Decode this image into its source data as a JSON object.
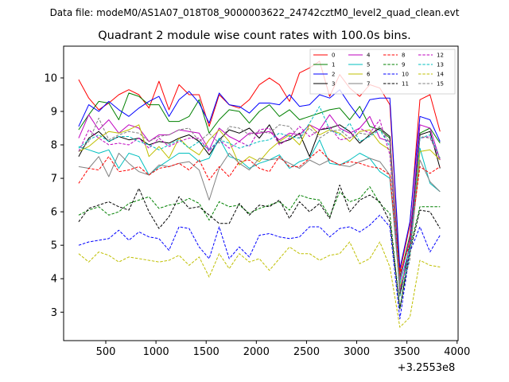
{
  "header": {
    "supertitle": "Data file: modeM0/AS1A07_018T08_9000003622_24742cztM0_level2_quad_clean.evt"
  },
  "chart_data": {
    "type": "line",
    "title": "Quadrant 2 module wise count rates with 100.0s bins.",
    "xlabel": "",
    "ylabel": "",
    "x_offset_label": "+3.2553e8",
    "xlim": [
      80,
      4010
    ],
    "ylim": [
      2.15,
      10.95
    ],
    "xticks": [
      500,
      1000,
      1500,
      2000,
      2500,
      3000,
      3500,
      4000
    ],
    "yticks": [
      3,
      4,
      5,
      6,
      7,
      8,
      9,
      10
    ],
    "legend_location": "top-right",
    "legend_columns": 4,
    "x": [
      230,
      330,
      430,
      530,
      630,
      730,
      830,
      930,
      1030,
      1130,
      1230,
      1330,
      1430,
      1530,
      1630,
      1730,
      1830,
      1930,
      2030,
      2130,
      2230,
      2330,
      2430,
      2530,
      2630,
      2730,
      2830,
      2930,
      3030,
      3130,
      3230,
      3330,
      3430,
      3530,
      3630,
      3730,
      3830
    ],
    "series": [
      {
        "name": "0",
        "color": "#ff0000",
        "dash": "solid",
        "values": [
          9.95,
          9.4,
          9.05,
          9.25,
          9.5,
          9.65,
          9.5,
          9.1,
          9.9,
          9.05,
          9.8,
          9.5,
          9.5,
          8.55,
          9.5,
          9.2,
          9.1,
          9.35,
          9.8,
          10.0,
          9.8,
          9.3,
          10.15,
          10.3,
          10.5,
          9.45,
          10.1,
          9.7,
          9.45,
          9.8,
          9.7,
          9.2,
          4.2,
          5.6,
          9.35,
          9.5,
          8.4
        ]
      },
      {
        "name": "1",
        "color": "#008000",
        "dash": "solid",
        "values": [
          8.45,
          8.9,
          9.3,
          9.25,
          8.75,
          9.55,
          9.45,
          9.2,
          9.2,
          8.7,
          8.7,
          8.85,
          9.35,
          8.35,
          8.75,
          9.05,
          9.0,
          8.65,
          9.0,
          9.2,
          8.85,
          9.05,
          8.75,
          8.85,
          8.95,
          9.05,
          9.1,
          8.75,
          9.15,
          8.55,
          8.45,
          8.2,
          4.05,
          5.3,
          8.35,
          8.5,
          8.05
        ]
      },
      {
        "name": "2",
        "color": "#0000ff",
        "dash": "solid",
        "values": [
          8.55,
          9.2,
          9.0,
          9.3,
          9.05,
          8.85,
          9.1,
          9.3,
          9.45,
          8.85,
          9.35,
          9.6,
          9.25,
          8.65,
          9.55,
          9.2,
          9.15,
          8.95,
          9.25,
          9.25,
          9.2,
          9.5,
          9.15,
          9.2,
          9.5,
          9.4,
          9.65,
          9.2,
          8.8,
          9.35,
          9.4,
          9.4,
          4.3,
          5.7,
          8.85,
          8.75,
          8.1
        ]
      },
      {
        "name": "3",
        "color": "#000000",
        "dash": "solid",
        "values": [
          7.65,
          8.2,
          8.4,
          8.1,
          8.25,
          8.15,
          8.2,
          8.0,
          8.1,
          8.05,
          8.2,
          8.3,
          8.1,
          7.7,
          8.15,
          8.45,
          8.35,
          8.5,
          8.2,
          8.6,
          8.05,
          8.15,
          8.35,
          7.65,
          8.45,
          8.5,
          8.6,
          8.4,
          8.05,
          8.3,
          8.5,
          8.25,
          3.5,
          5.05,
          8.3,
          8.4,
          7.3
        ]
      },
      {
        "name": "4",
        "color": "#bf00bf",
        "dash": "solid",
        "values": [
          8.2,
          8.9,
          8.45,
          8.75,
          8.35,
          8.6,
          8.5,
          8.1,
          8.3,
          8.3,
          8.45,
          8.4,
          8.35,
          7.85,
          8.5,
          8.25,
          8.1,
          8.35,
          8.35,
          8.4,
          8.15,
          8.35,
          8.3,
          8.6,
          8.45,
          8.9,
          8.5,
          8.35,
          8.5,
          8.85,
          8.2,
          8.1,
          3.95,
          5.2,
          8.6,
          8.5,
          7.55
        ]
      },
      {
        "name": "5",
        "color": "#00bfbf",
        "dash": "solid",
        "values": [
          7.95,
          7.85,
          7.75,
          7.85,
          7.3,
          7.75,
          7.65,
          7.1,
          7.35,
          7.55,
          7.75,
          7.75,
          7.5,
          7.6,
          8.2,
          7.65,
          7.55,
          7.3,
          7.45,
          7.55,
          7.7,
          7.3,
          7.5,
          7.6,
          8.15,
          7.45,
          7.4,
          7.55,
          7.75,
          7.6,
          7.2,
          7.0,
          3.85,
          4.95,
          7.9,
          6.85,
          6.6
        ]
      },
      {
        "name": "6",
        "color": "#bfbf00",
        "dash": "solid",
        "values": [
          7.8,
          7.95,
          8.2,
          8.4,
          8.35,
          8.45,
          8.6,
          7.65,
          7.95,
          7.6,
          8.2,
          7.9,
          7.7,
          8.15,
          8.45,
          8.1,
          7.4,
          7.65,
          7.5,
          7.85,
          8.1,
          8.3,
          8.0,
          8.6,
          8.3,
          8.45,
          8.35,
          8.1,
          8.4,
          8.45,
          8.05,
          7.85,
          3.75,
          4.7,
          7.8,
          7.85,
          7.55
        ]
      },
      {
        "name": "7",
        "color": "#808080",
        "dash": "solid",
        "values": [
          7.35,
          7.3,
          7.65,
          7.05,
          7.75,
          7.45,
          7.2,
          7.1,
          7.4,
          7.35,
          7.45,
          7.5,
          7.25,
          6.35,
          7.3,
          7.75,
          7.45,
          7.25,
          7.6,
          7.55,
          7.6,
          7.45,
          7.3,
          7.55,
          7.4,
          7.55,
          7.4,
          7.35,
          7.5,
          7.6,
          7.5,
          7.1,
          3.65,
          4.75,
          7.55,
          6.9,
          6.6
        ]
      },
      {
        "name": "8",
        "color": "#ff0000",
        "dash": "dashed",
        "values": [
          6.85,
          7.3,
          7.25,
          7.65,
          7.2,
          7.25,
          7.35,
          7.1,
          7.3,
          7.35,
          7.45,
          7.25,
          7.55,
          6.95,
          7.35,
          7.05,
          7.5,
          7.55,
          7.3,
          7.2,
          7.65,
          7.35,
          7.35,
          7.6,
          7.85,
          7.55,
          7.4,
          7.5,
          7.45,
          7.35,
          7.3,
          7.1,
          4.15,
          5.05,
          7.35,
          7.15,
          7.35
        ]
      },
      {
        "name": "9",
        "color": "#008000",
        "dash": "dashed",
        "values": [
          5.9,
          6.05,
          6.15,
          5.9,
          6.0,
          6.25,
          6.35,
          6.45,
          6.1,
          6.2,
          6.25,
          6.4,
          6.25,
          5.75,
          6.3,
          6.15,
          6.2,
          5.95,
          6.1,
          6.2,
          6.3,
          6.05,
          6.5,
          6.4,
          6.35,
          5.85,
          6.6,
          6.3,
          6.4,
          6.75,
          6.25,
          5.95,
          3.1,
          4.9,
          6.15,
          6.15,
          6.15
        ]
      },
      {
        "name": "10",
        "color": "#0000ff",
        "dash": "dashed",
        "values": [
          5.0,
          5.1,
          5.15,
          5.2,
          5.45,
          5.15,
          5.4,
          5.25,
          5.2,
          4.85,
          5.55,
          5.5,
          4.95,
          4.6,
          5.55,
          4.6,
          4.95,
          4.65,
          5.3,
          5.35,
          5.25,
          5.2,
          5.25,
          5.55,
          5.55,
          5.25,
          5.5,
          5.55,
          5.4,
          5.6,
          5.9,
          5.55,
          2.8,
          4.8,
          5.55,
          4.8,
          5.3
        ]
      },
      {
        "name": "11",
        "color": "#000000",
        "dash": "dashed",
        "values": [
          5.7,
          6.1,
          6.2,
          6.3,
          6.15,
          6.05,
          6.7,
          6.0,
          5.5,
          5.85,
          6.45,
          6.1,
          6.15,
          5.9,
          5.65,
          5.65,
          6.25,
          5.9,
          6.2,
          6.15,
          6.35,
          5.8,
          6.3,
          6.0,
          6.25,
          5.8,
          6.8,
          6.0,
          6.35,
          6.5,
          6.3,
          5.7,
          3.1,
          4.8,
          6.05,
          6.0,
          5.5
        ]
      },
      {
        "name": "12",
        "color": "#bf00bf",
        "dash": "dashed",
        "values": [
          7.8,
          8.45,
          8.2,
          8.0,
          8.05,
          8.0,
          8.2,
          7.9,
          8.2,
          7.95,
          8.1,
          8.2,
          8.2,
          7.8,
          8.15,
          7.9,
          8.1,
          7.95,
          8.45,
          8.5,
          8.0,
          8.2,
          8.55,
          8.25,
          8.45,
          8.55,
          8.15,
          8.2,
          8.5,
          8.35,
          8.75,
          7.7,
          3.65,
          4.85,
          8.2,
          8.25,
          7.55
        ]
      },
      {
        "name": "13",
        "color": "#00bfbf",
        "dash": "dashed",
        "values": [
          7.9,
          8.15,
          8.3,
          8.1,
          8.25,
          8.25,
          8.1,
          8.0,
          7.85,
          8.0,
          8.15,
          7.9,
          8.1,
          7.85,
          8.15,
          8.05,
          7.9,
          8.0,
          8.1,
          8.15,
          8.35,
          8.25,
          8.2,
          8.65,
          9.15,
          8.45,
          8.3,
          8.65,
          8.1,
          8.25,
          8.45,
          7.95,
          3.45,
          4.75,
          8.2,
          8.3,
          7.6
        ]
      },
      {
        "name": "14",
        "color": "#bfbf00",
        "dash": "dashed",
        "values": [
          4.75,
          4.5,
          4.8,
          4.7,
          4.5,
          4.65,
          4.6,
          4.55,
          4.5,
          4.55,
          4.7,
          4.4,
          4.65,
          4.05,
          4.75,
          4.3,
          4.75,
          4.5,
          4.6,
          4.25,
          4.6,
          4.95,
          4.75,
          4.75,
          4.55,
          4.7,
          4.75,
          5.1,
          4.45,
          4.6,
          5.1,
          4.35,
          2.55,
          2.85,
          4.55,
          4.4,
          4.35
        ]
      },
      {
        "name": "15",
        "color": "#808080",
        "dash": "dashed",
        "values": [
          7.8,
          8.1,
          8.8,
          8.15,
          8.3,
          8.4,
          8.35,
          8.1,
          8.25,
          8.3,
          8.45,
          8.5,
          8.1,
          8.35,
          8.05,
          8.55,
          8.5,
          8.3,
          8.4,
          8.35,
          8.6,
          8.55,
          8.2,
          8.5,
          8.2,
          8.4,
          8.45,
          8.2,
          8.35,
          8.3,
          8.55,
          8.05,
          3.5,
          4.55,
          8.25,
          8.2,
          7.6
        ]
      }
    ]
  }
}
